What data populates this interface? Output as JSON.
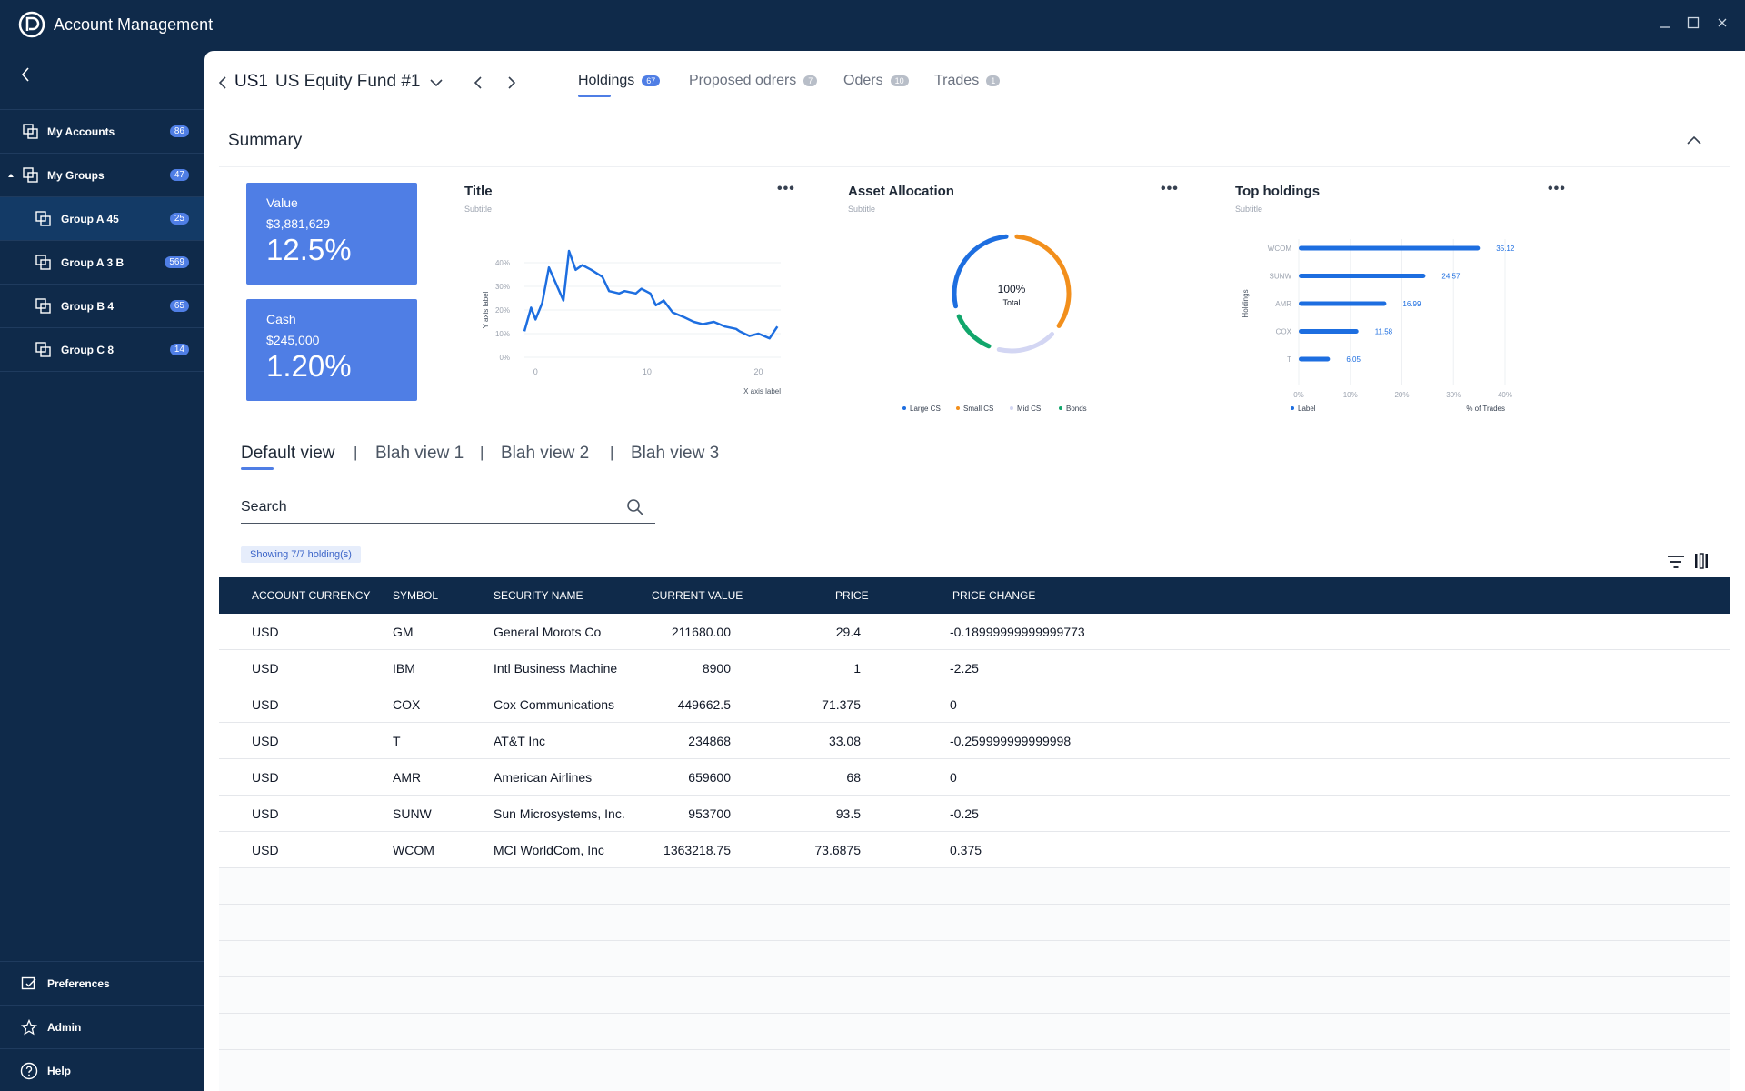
{
  "app": {
    "title": "Account Management"
  },
  "sidebar": {
    "items": [
      {
        "label": "My Accounts",
        "count": "86"
      },
      {
        "label": "My Groups",
        "count": "47"
      },
      {
        "label": "Group A 45",
        "count": "25"
      },
      {
        "label": "Group A 3 B",
        "count": "569"
      },
      {
        "label": "Group B 4",
        "count": "65"
      },
      {
        "label": "Group C 8",
        "count": "14"
      }
    ],
    "footer": [
      {
        "label": "Preferences"
      },
      {
        "label": "Admin"
      },
      {
        "label": "Help"
      }
    ]
  },
  "header": {
    "code": "US1",
    "fund": "US Equity Fund #1",
    "tabs": [
      {
        "label": "Holdings",
        "count": "67"
      },
      {
        "label": "Proposed odrers",
        "count": "7"
      },
      {
        "label": "Oders",
        "count": "10"
      },
      {
        "label": "Trades",
        "count": "1"
      }
    ]
  },
  "summary": {
    "title": "Summary",
    "kpis": [
      {
        "label": "Value",
        "amount": "$3,881,629",
        "pct": "12.5%"
      },
      {
        "label": "Cash",
        "amount": "$245,000",
        "pct": "1.20%"
      }
    ]
  },
  "chart_data": [
    {
      "type": "line",
      "title": "Title",
      "subtitle": "Subtitle",
      "xlabel": "X axis label",
      "ylabel": "Y axis label",
      "xlim": [
        -1,
        22
      ],
      "ylim": [
        0,
        40
      ],
      "xticks": [
        "0",
        "10",
        "20"
      ],
      "yticks": [
        "0%",
        "10%",
        "20%",
        "30%",
        "40%"
      ],
      "grid": true,
      "x": [
        -1,
        -0.4,
        0,
        0.6,
        1.2,
        2.5,
        3,
        3.6,
        4.2,
        5,
        6,
        6.6,
        7.5,
        8,
        9,
        9.5,
        10.3,
        10.8,
        11.5,
        12.3,
        13.3,
        14.2,
        15,
        16,
        17,
        18,
        18.3,
        19.2,
        20,
        21,
        21.7
      ],
      "y": [
        11,
        21,
        16,
        23,
        38,
        24,
        45,
        37,
        39,
        37,
        34,
        28,
        27,
        28,
        27,
        29,
        27,
        22,
        24,
        19,
        17,
        15,
        14,
        15,
        13,
        12,
        11,
        9,
        10,
        8,
        13
      ],
      "series": [
        {
          "values": [
            11,
            21,
            16,
            23,
            38,
            24,
            45,
            37,
            39,
            37,
            34,
            28,
            27,
            28,
            27,
            29,
            27,
            22,
            24,
            19,
            17,
            15,
            14,
            15,
            13,
            12,
            11,
            9,
            10,
            8,
            13
          ]
        }
      ]
    },
    {
      "type": "pie",
      "title": "Asset Allocation",
      "subtitle": "Subtitle",
      "center_value": "100%",
      "center_label": "Total",
      "categories": [
        "Large CS",
        "Small CS",
        "Mid CS",
        "Bonds"
      ],
      "values": [
        27,
        33,
        16,
        12
      ],
      "colors": [
        "#1d6ee0",
        "#f28f1c",
        "#d3d6f3",
        "#11a66b"
      ],
      "legend": "bottom"
    },
    {
      "type": "bar",
      "orientation": "horizontal",
      "title": "Top holdings",
      "subtitle": "Subtitle",
      "categories": [
        "WCOM",
        "SUNW",
        "AMR",
        "COX",
        "T"
      ],
      "values": [
        35.12,
        24.57,
        16.99,
        11.58,
        6.05
      ],
      "xlim": [
        0,
        40
      ],
      "xticks": [
        "0%",
        "10%",
        "20%",
        "30%",
        "40%"
      ],
      "ylabel": "Holdings",
      "xlabel": "% of Trades",
      "legend": [
        "Label"
      ],
      "color": "#1d6ee0"
    }
  ],
  "views": {
    "tabs": [
      "Default view",
      "Blah view 1",
      "Blah view 2",
      "Blah view 3"
    ],
    "separator": "|",
    "search_placeholder": "Search",
    "showing": "Showing 7/7 holding(s)"
  },
  "table": {
    "columns": [
      "ACCOUNT CURRENCY",
      "SYMBOL",
      "SECURITY NAME",
      "CURRENT VALUE",
      "PRICE",
      "PRICE CHANGE"
    ],
    "rows": [
      [
        "USD",
        "GM",
        "General Morots Co",
        "211680.00",
        "29.4",
        "-0.18999999999999773"
      ],
      [
        "USD",
        "IBM",
        "Intl Business Machine",
        "8900",
        "1",
        "-2.25"
      ],
      [
        "USD",
        "COX",
        "Cox Communications",
        "449662.5",
        "71.375",
        "0"
      ],
      [
        "USD",
        "T",
        "AT&T Inc",
        "234868",
        "33.08",
        "-0.259999999999998"
      ],
      [
        "USD",
        "AMR",
        "American Airlines",
        "659600",
        "68",
        "0"
      ],
      [
        "USD",
        "SUNW",
        "Sun Microsystems, Inc.",
        "953700",
        "93.5",
        "-0.25"
      ],
      [
        "USD",
        "WCOM",
        "MCI WorldCom, Inc",
        "1363218.75",
        "73.6875",
        "0.375"
      ]
    ]
  }
}
